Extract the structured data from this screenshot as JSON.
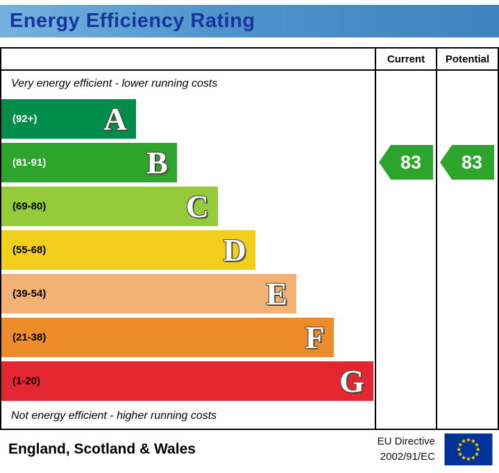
{
  "header": {
    "title": "Energy Efficiency Rating"
  },
  "columns": {
    "current": "Current",
    "potential": "Potential"
  },
  "notes": {
    "top": "Very energy efficient - lower running costs",
    "bottom": "Not energy efficient - higher running costs"
  },
  "bands": [
    {
      "letter": "A",
      "range": "(92+)",
      "color": "#008c4a",
      "width": "36%",
      "text_color": "#ffffff"
    },
    {
      "letter": "B",
      "range": "(81-91)",
      "color": "#2da52d",
      "width": "47%",
      "text_color": "#ffffff"
    },
    {
      "letter": "C",
      "range": "(69-80)",
      "color": "#95ca3b",
      "width": "58%",
      "text_color": "#000000"
    },
    {
      "letter": "D",
      "range": "(55-68)",
      "color": "#f3cf1d",
      "width": "68%",
      "text_color": "#000000"
    },
    {
      "letter": "E",
      "range": "(39-54)",
      "color": "#f3b173",
      "width": "79%",
      "text_color": "#000000"
    },
    {
      "letter": "F",
      "range": "(21-38)",
      "color": "#ed8c2b",
      "width": "89%",
      "text_color": "#000000"
    },
    {
      "letter": "G",
      "range": "(1-20)",
      "color": "#e3262f",
      "width": "99.6%",
      "text_color": "#000000"
    }
  ],
  "ratings": {
    "current": {
      "value": "83",
      "band": "B",
      "color": "#2da52d"
    },
    "potential": {
      "value": "83",
      "band": "B",
      "color": "#2da52d"
    }
  },
  "footer": {
    "region": "England, Scotland & Wales",
    "directive_line1": "EU Directive",
    "directive_line2": "2002/91/EC"
  },
  "chart_data": {
    "type": "bar",
    "title": "Energy Efficiency Rating",
    "categories": [
      "A",
      "B",
      "C",
      "D",
      "E",
      "F",
      "G"
    ],
    "band_ranges": [
      "92+",
      "81-91",
      "69-80",
      "55-68",
      "39-54",
      "21-38",
      "1-20"
    ],
    "band_colors": [
      "#008c4a",
      "#2da52d",
      "#95ca3b",
      "#f3cf1d",
      "#f3b173",
      "#ed8c2b",
      "#e3262f"
    ],
    "bar_lengths_pct": [
      36,
      47,
      58,
      68,
      79,
      89,
      99.6
    ],
    "series": [
      {
        "name": "Current",
        "values": [
          83
        ]
      },
      {
        "name": "Potential",
        "values": [
          83
        ]
      }
    ],
    "annotations": [
      "Very energy efficient - lower running costs",
      "Not energy efficient - higher running costs"
    ],
    "legend_position": "none",
    "grid": false
  }
}
